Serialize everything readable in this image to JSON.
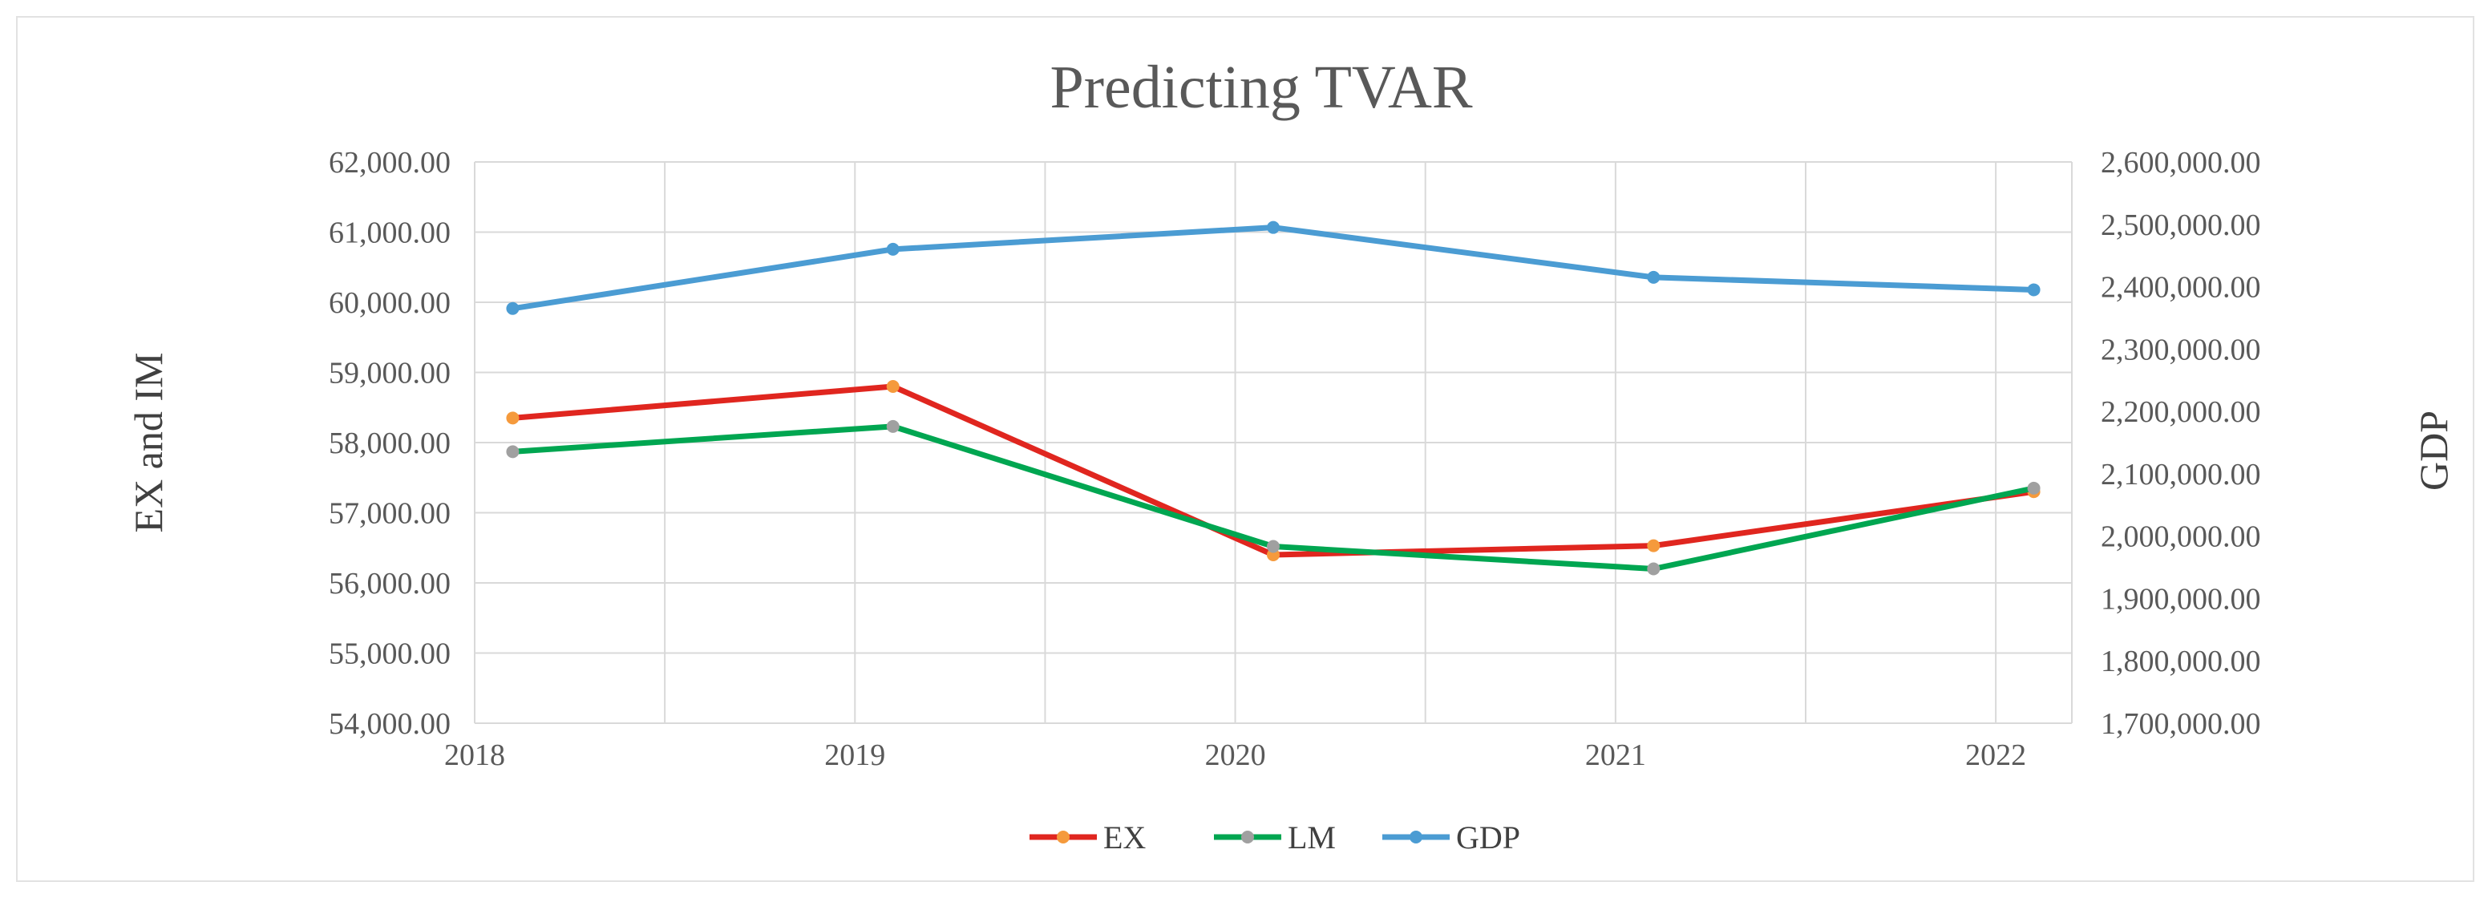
{
  "chart_data": {
    "type": "line",
    "title": "Predicting TVAR",
    "categories": [
      "2018",
      "2019",
      "2020",
      "2021",
      "2022"
    ],
    "x": [
      2018,
      2019,
      2020,
      2021,
      2022
    ],
    "xlim": [
      2018,
      2022.2
    ],
    "ylabel_left": "EX and IM",
    "ylabel_right": "GDP",
    "ylim_left": [
      54000,
      62000
    ],
    "ylim_right": [
      1700000,
      2600000
    ],
    "yticks_left": [
      "54,000.00",
      "55,000.00",
      "56,000.00",
      "57,000.00",
      "58,000.00",
      "59,000.00",
      "60,000.00",
      "61,000.00",
      "62,000.00"
    ],
    "yticks_right": [
      "1,700,000.00",
      "1,800,000.00",
      "1,900,000.00",
      "2,000,000.00",
      "2,100,000.00",
      "2,200,000.00",
      "2,300,000.00",
      "2,400,000.00",
      "2,500,000.00",
      "2,600,000.00"
    ],
    "grid": true,
    "legend_position": "bottom",
    "series": [
      {
        "name": "EX",
        "axis": "left",
        "color": "#e0261f",
        "marker_color": "#f59a3c",
        "x": [
          2018.1,
          2019.1,
          2020.1,
          2021.1,
          2022.1
        ],
        "values": [
          58350,
          58800,
          56400,
          56530,
          57300
        ]
      },
      {
        "name": "LM",
        "axis": "left",
        "color": "#00a651",
        "marker_color": "#a0a0a0",
        "x": [
          2018.1,
          2019.1,
          2020.1,
          2021.1,
          2022.1
        ],
        "values": [
          57870,
          58230,
          56520,
          56200,
          57350
        ]
      },
      {
        "name": "GDP",
        "axis": "right",
        "color": "#4b9cd3",
        "marker_color": "#4b9cd3",
        "x": [
          2018.1,
          2019.1,
          2020.1,
          2021.1,
          2022.1
        ],
        "values": [
          2365000,
          2460000,
          2495000,
          2415000,
          2395000
        ]
      }
    ]
  }
}
